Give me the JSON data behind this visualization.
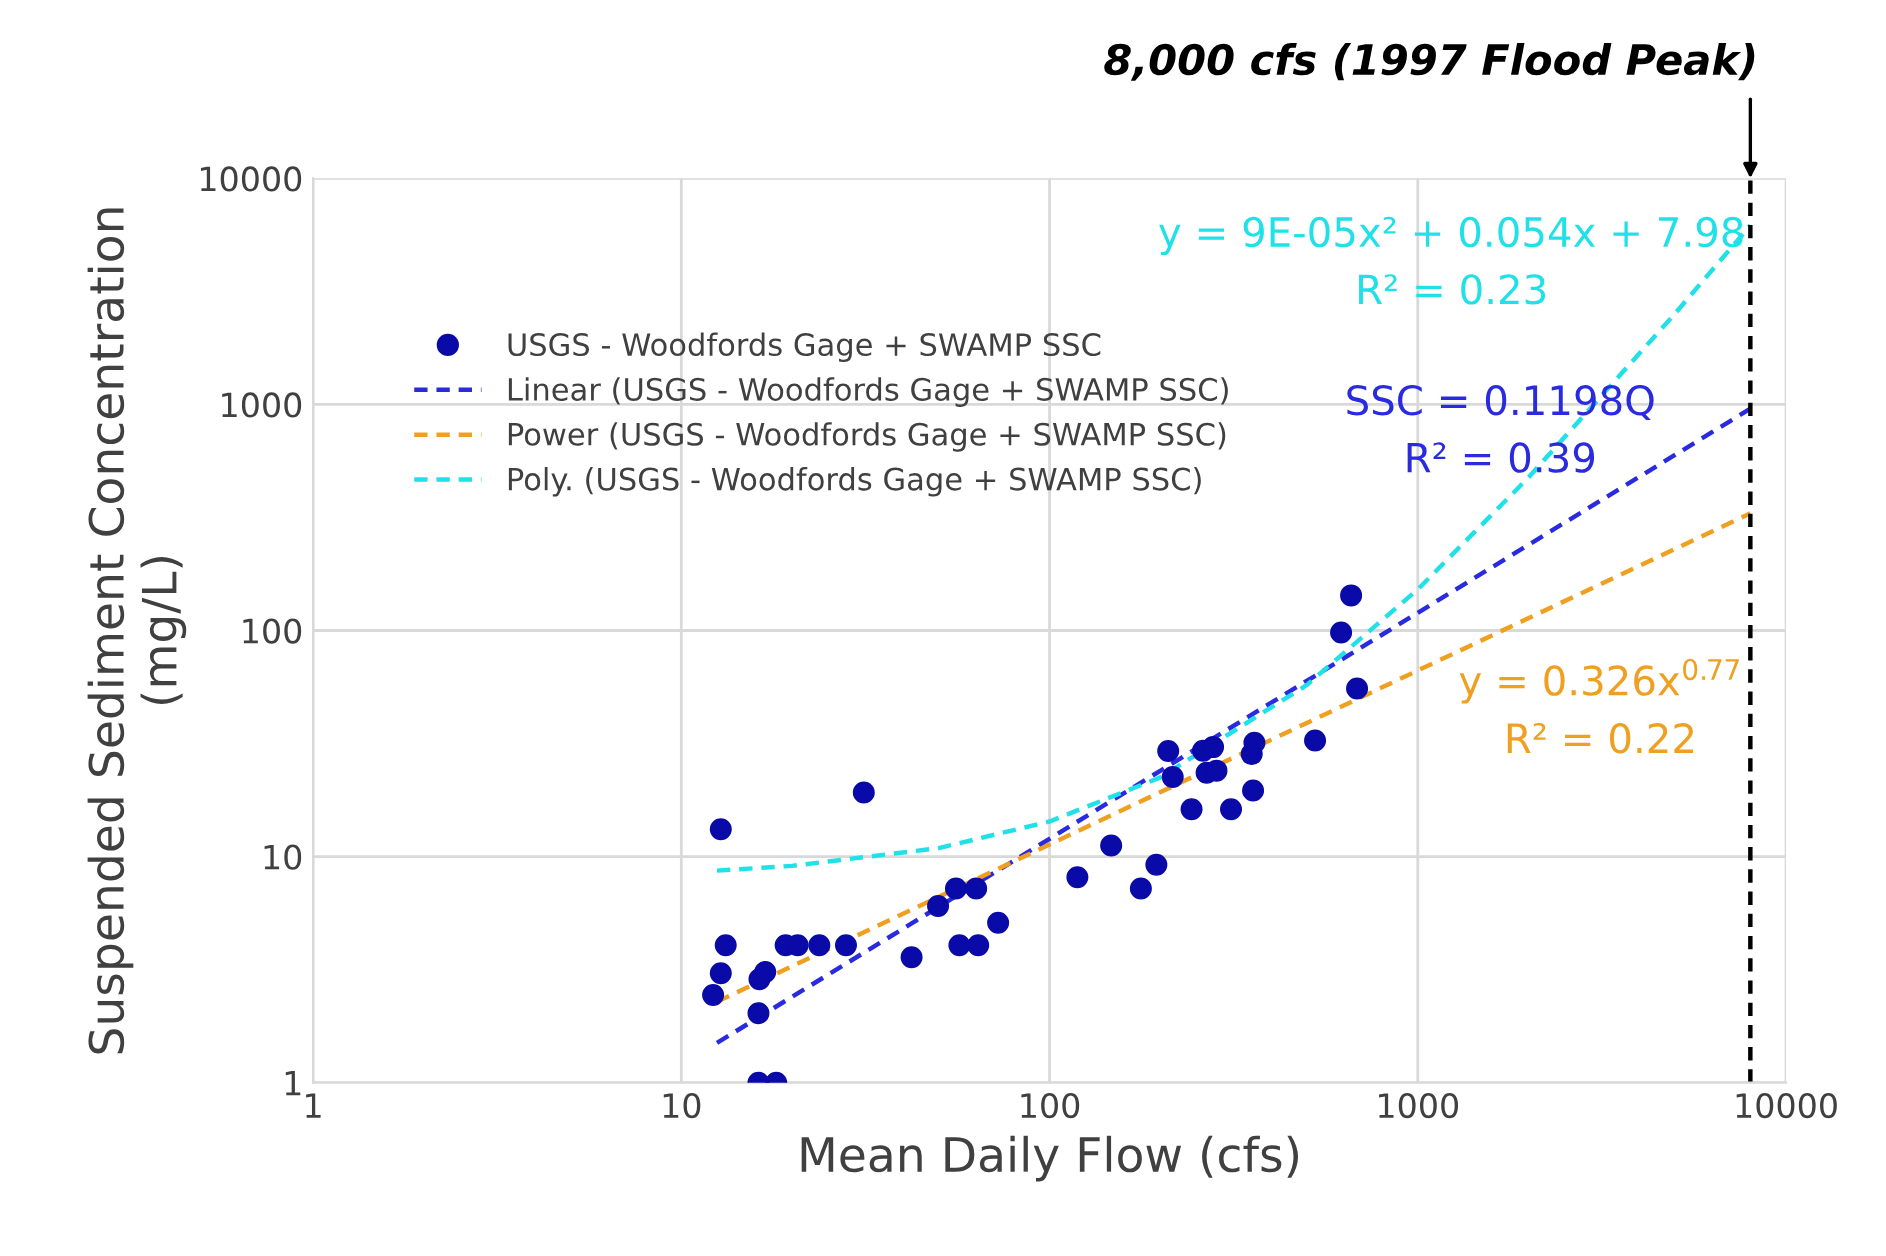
{
  "chart_data": {
    "type": "scatter",
    "xlabel": "Mean Daily Flow (cfs)",
    "ylabel": "Suspended Sediment Concentration\n(mg/L)",
    "log": "xy",
    "xlim": [
      1,
      10000
    ],
    "ylim": [
      1,
      10000
    ],
    "xticks": [
      1,
      10,
      100,
      1000,
      10000
    ],
    "yticks": [
      1,
      10,
      100,
      1000,
      10000
    ],
    "grid": true,
    "legend": "top left",
    "series": [
      {
        "name": "USGS - Woodfords Gage + SWAMP SSC",
        "marker": "circle",
        "color": "#0a0aa8",
        "x": [
          12.8,
          31.3,
          13.2,
          12.8,
          12.2,
          16.3,
          16.9,
          16.2,
          16.2,
          18.1,
          19.2,
          20.7,
          23.7,
          28.0,
          42.2,
          49.8,
          55.7,
          63.2,
          56.9,
          64.0,
          72.5,
          119,
          147,
          177,
          195,
          210,
          216,
          243,
          261,
          278,
          267,
          284,
          311,
          354,
          360,
          357,
          526,
          619,
          659,
          684
        ],
        "values": [
          13.2,
          19.2,
          4.05,
          3.05,
          2.44,
          2.87,
          3.09,
          2.03,
          1,
          1,
          4.05,
          4.05,
          4.05,
          4.05,
          3.59,
          6.04,
          7.22,
          7.22,
          4.05,
          4.05,
          5.1,
          8.1,
          11.2,
          7.22,
          9.2,
          29.3,
          22.5,
          16.2,
          29.4,
          30.5,
          23.5,
          24.0,
          16.2,
          28.4,
          31.9,
          19.6,
          32.6,
          98,
          143,
          55.4
        ]
      },
      {
        "name": "Linear (USGS - Woodfords Gage + SWAMP SSC)",
        "type": "line",
        "line_style": "dashed",
        "marker": "none",
        "color": "#2a2ae0",
        "x": [
          12.5,
          8000
        ],
        "values": [
          1.5,
          958
        ]
      },
      {
        "name": "Power (USGS - Woodfords Gage + SWAMP SSC)",
        "type": "line",
        "line_style": "dashed",
        "marker": "none",
        "color": "#f0a020",
        "x": [
          12.5,
          8000
        ],
        "values": [
          2.28,
          330
        ]
      },
      {
        "name": "Poly. (USGS - Woodfords Gage + SWAMP SSC)",
        "type": "line",
        "line_style": "dashed",
        "marker": "none",
        "color": "#20e0e8",
        "x": [
          12.5,
          20,
          50,
          100,
          200,
          500,
          1000,
          2000,
          5000,
          8000
        ],
        "values": [
          8.67,
          9.1,
          10.9,
          14.3,
          22.4,
          57.5,
          152,
          476,
          2528,
          6200
        ]
      }
    ],
    "annotations": [
      "y = 9E-05x² + 0.054x + 7.98\nR² = 0.23",
      "SSC = 0.1198Q\nR² = 0.39",
      "y = 0.326x$^{0.77}$\nR² = 0.22"
    ],
    "ref_lines": [
      {
        "axis": "x",
        "value": 8000,
        "label": "8,000 cfs (1997 Flood Peak)",
        "color": "#000000",
        "line_style": "dashed"
      }
    ]
  }
}
